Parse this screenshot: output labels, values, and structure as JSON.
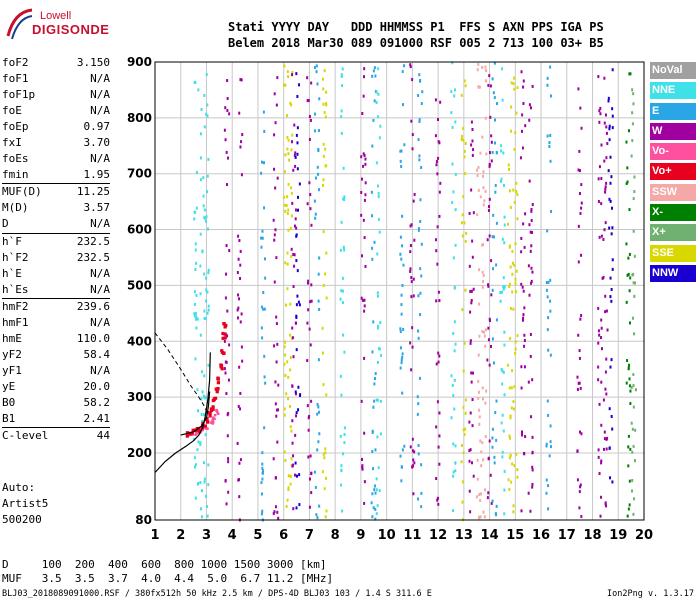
{
  "logo": {
    "line1": "Lowell",
    "line2": "DIGISONDE"
  },
  "header": {
    "line1": "Stati YYYY DAY   DDD HHMMSS P1  FFS S AXN PPS IGA PS",
    "line2": "Belem 2018 Mar30 089 091000 RSF 005 2 713 100 03+ B5"
  },
  "parameters": [
    {
      "name": "foF2",
      "value": "3.150"
    },
    {
      "name": "foF1",
      "value": "N/A"
    },
    {
      "name": "foF1p",
      "value": "N/A"
    },
    {
      "name": "foE",
      "value": "N/A"
    },
    {
      "name": "foEp",
      "value": "0.97"
    },
    {
      "name": "fxI",
      "value": "3.70"
    },
    {
      "name": "foEs",
      "value": "N/A"
    },
    {
      "name": "fmin",
      "value": "1.95"
    },
    {
      "name": "MUF(D)",
      "value": "11.25"
    },
    {
      "name": "M(D)",
      "value": "3.57"
    },
    {
      "name": "D",
      "value": "N/A"
    },
    {
      "name": "h`F",
      "value": "232.5"
    },
    {
      "name": "h`F2",
      "value": "232.5"
    },
    {
      "name": "h`E",
      "value": "N/A"
    },
    {
      "name": "h`Es",
      "value": "N/A"
    },
    {
      "name": "hmF2",
      "value": "239.6"
    },
    {
      "name": "hmF1",
      "value": "N/A"
    },
    {
      "name": "hmE",
      "value": "110.0"
    },
    {
      "name": "yF2",
      "value": "58.4"
    },
    {
      "name": "yF1",
      "value": "N/A"
    },
    {
      "name": "yE",
      "value": "20.0"
    },
    {
      "name": "B0",
      "value": "58.2"
    },
    {
      "name": "B1",
      "value": "2.41"
    },
    {
      "name": "C-level",
      "value": "44"
    }
  ],
  "auto": {
    "line1": "Auto:",
    "line2": "Artist5",
    "line3": "500200"
  },
  "legend": [
    {
      "label": "NoVal",
      "color": "#a0a0a0"
    },
    {
      "label": "NNE",
      "color": "#3fe0e8"
    },
    {
      "label": "E",
      "color": "#2aa6e6"
    },
    {
      "label": "W",
      "color": "#a000a0"
    },
    {
      "label": "Vo-",
      "color": "#ff4f9f"
    },
    {
      "label": "Vo+",
      "color": "#e8001f"
    },
    {
      "label": "SSW",
      "color": "#f5a8a8"
    },
    {
      "label": "X-",
      "color": "#008000"
    },
    {
      "label": "X+",
      "color": "#70b070"
    },
    {
      "label": "SSE",
      "color": "#d8d800"
    },
    {
      "label": "NNW",
      "color": "#1a00d0"
    }
  ],
  "footer": {
    "line1": "D     100  200  400  600  800 1000 1500 3000 [km]",
    "line2": "MUF   3.5  3.5  3.7  4.0  4.4  5.0  6.7 11.2 [MHz]",
    "line3": "BLJ03_2018089091000.RSF / 380fx512h 50 kHz 2.5 km / DPS-4D BLJ03 103 / 1.4 S 311.6 E",
    "version": "Ion2Png v. 1.3.17"
  },
  "chart_data": {
    "type": "scatter",
    "xlim": [
      1,
      20
    ],
    "ylim": [
      80,
      900
    ],
    "xticks": [
      "1",
      "2",
      "3",
      "4",
      "5",
      "6",
      "7",
      "8",
      "9",
      "10",
      "11",
      "12",
      "13",
      "14",
      "15",
      "16",
      "17",
      "18",
      "19",
      "20"
    ],
    "yticks": [
      "80",
      "200",
      "300",
      "400",
      "500",
      "600",
      "700",
      "800",
      "900"
    ],
    "xtick_values": [
      1,
      2,
      3,
      4,
      5,
      6,
      7,
      8,
      9,
      10,
      11,
      12,
      13,
      14,
      15,
      16,
      17,
      18,
      19,
      20
    ],
    "ytick_values": [
      80,
      200,
      300,
      400,
      500,
      600,
      700,
      800,
      900
    ],
    "grid": true,
    "trace_vo_plus": [
      [
        2.3,
        235
      ],
      [
        2.5,
        238
      ],
      [
        2.7,
        242
      ],
      [
        2.9,
        250
      ],
      [
        3.0,
        258
      ],
      [
        3.1,
        268
      ],
      [
        3.2,
        280
      ],
      [
        3.3,
        295
      ],
      [
        3.4,
        312
      ],
      [
        3.5,
        330
      ],
      [
        3.6,
        355
      ],
      [
        3.65,
        380
      ],
      [
        3.7,
        410
      ],
      [
        3.72,
        430
      ]
    ],
    "trace_vo_minus": [
      [
        2.4,
        232
      ],
      [
        2.6,
        236
      ],
      [
        2.8,
        240
      ],
      [
        3.0,
        246
      ],
      [
        3.2,
        255
      ],
      [
        3.3,
        265
      ],
      [
        3.4,
        275
      ]
    ],
    "profile_solid": [
      [
        1,
        165
      ],
      [
        1.4,
        185
      ],
      [
        1.8,
        200
      ],
      [
        2.2,
        212
      ],
      [
        2.5,
        222
      ],
      [
        2.7,
        232
      ],
      [
        2.85,
        245
      ],
      [
        2.95,
        265
      ],
      [
        3.05,
        295
      ],
      [
        3.12,
        330
      ],
      [
        3.15,
        380
      ]
    ],
    "profile_solid_low": [
      [
        2.0,
        232
      ],
      [
        2.5,
        238
      ],
      [
        2.8,
        248
      ],
      [
        3.0,
        262
      ],
      [
        3.08,
        285
      ],
      [
        3.12,
        310
      ]
    ],
    "profile_dashed": [
      [
        1,
        415
      ],
      [
        1.5,
        385
      ],
      [
        2.0,
        350
      ],
      [
        2.4,
        320
      ],
      [
        2.7,
        300
      ],
      [
        2.9,
        285
      ],
      [
        3.05,
        270
      ]
    ],
    "noise_columns": [
      {
        "x": 2.6,
        "color": "#3fe0e8"
      },
      {
        "x": 2.85,
        "color": "#3fe0e8"
      },
      {
        "x": 3.0,
        "color": "#3fe0e8"
      },
      {
        "x": 3.8,
        "color": "#a000a0"
      },
      {
        "x": 4.3,
        "color": "#a000a0"
      },
      {
        "x": 5.2,
        "color": "#2aa6e6"
      },
      {
        "x": 5.7,
        "color": "#a000a0"
      },
      {
        "x": 6.1,
        "color": "#d8d800"
      },
      {
        "x": 6.25,
        "color": "#d8d800"
      },
      {
        "x": 6.4,
        "color": "#a000a0"
      },
      {
        "x": 6.55,
        "color": "#1a00d0"
      },
      {
        "x": 7.0,
        "color": "#a000a0"
      },
      {
        "x": 7.3,
        "color": "#2aa6e6"
      },
      {
        "x": 7.6,
        "color": "#d8d800"
      },
      {
        "x": 8.3,
        "color": "#3fe0e8"
      },
      {
        "x": 9.1,
        "color": "#a000a0"
      },
      {
        "x": 9.5,
        "color": "#2aa6e6"
      },
      {
        "x": 9.7,
        "color": "#3fe0e8"
      },
      {
        "x": 10.6,
        "color": "#2aa6e6"
      },
      {
        "x": 11.0,
        "color": "#a000a0"
      },
      {
        "x": 11.3,
        "color": "#2aa6e6"
      },
      {
        "x": 12.0,
        "color": "#a000a0"
      },
      {
        "x": 12.6,
        "color": "#3fe0e8"
      },
      {
        "x": 13.0,
        "color": "#d8d800"
      },
      {
        "x": 13.3,
        "color": "#a000a0"
      },
      {
        "x": 13.6,
        "color": "#f5a8a8"
      },
      {
        "x": 13.8,
        "color": "#f5a8a8"
      },
      {
        "x": 14.0,
        "color": "#a000a0"
      },
      {
        "x": 14.2,
        "color": "#2aa6e6"
      },
      {
        "x": 14.5,
        "color": "#3fe0e8"
      },
      {
        "x": 14.8,
        "color": "#d8d800"
      },
      {
        "x": 15.0,
        "color": "#d8d800"
      },
      {
        "x": 15.3,
        "color": "#a000a0"
      },
      {
        "x": 15.6,
        "color": "#a000a0"
      },
      {
        "x": 16.3,
        "color": "#2aa6e6"
      },
      {
        "x": 17.5,
        "color": "#a000a0"
      },
      {
        "x": 18.3,
        "color": "#a000a0"
      },
      {
        "x": 18.5,
        "color": "#a000a0"
      },
      {
        "x": 18.7,
        "color": "#1a00d0"
      },
      {
        "x": 19.4,
        "color": "#008000"
      },
      {
        "x": 19.6,
        "color": "#70b070"
      }
    ]
  }
}
